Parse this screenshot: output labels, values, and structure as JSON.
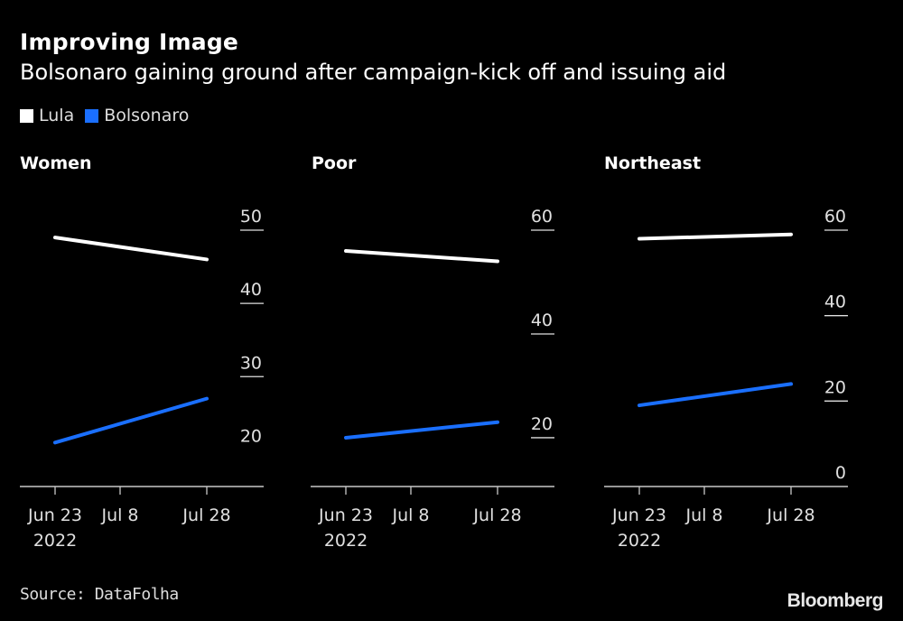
{
  "header": {
    "title": "Improving Image",
    "subtitle": "Bolsonaro gaining ground after campaign-kick off and issuing aid"
  },
  "legend": [
    {
      "label": "Lula",
      "color": "#ffffff"
    },
    {
      "label": "Bolsonaro",
      "color": "#1a6fff"
    }
  ],
  "footer": {
    "source": "Source: DataFolha",
    "brand": "Bloomberg"
  },
  "chart_data": [
    {
      "type": "line",
      "title": "Women",
      "x": [
        "2022-06-23",
        "2022-07-28"
      ],
      "xticks": [
        "Jun 23",
        "Jul 8",
        "Jul 28"
      ],
      "xtick_dates": [
        "2022-06-23",
        "2022-07-08",
        "2022-07-28"
      ],
      "xtick_sub": "2022",
      "yticks": [
        20,
        30,
        40,
        50
      ],
      "ylim": [
        15,
        50
      ],
      "grid": true,
      "legend": "top-left",
      "series": [
        {
          "name": "Lula",
          "values": [
            49,
            46
          ]
        },
        {
          "name": "Bolsonaro",
          "values": [
            21,
            27
          ]
        }
      ]
    },
    {
      "type": "line",
      "title": "Poor",
      "x": [
        "2022-06-23",
        "2022-07-28"
      ],
      "xticks": [
        "Jun 23",
        "Jul 8",
        "Jul 28"
      ],
      "xtick_dates": [
        "2022-06-23",
        "2022-07-08",
        "2022-07-28"
      ],
      "xtick_sub": "2022",
      "yticks": [
        20,
        40,
        60
      ],
      "ylim": [
        10.6,
        60
      ],
      "grid": true,
      "series": [
        {
          "name": "Lula",
          "values": [
            56,
            54
          ]
        },
        {
          "name": "Bolsonaro",
          "values": [
            20,
            23
          ]
        }
      ]
    },
    {
      "type": "line",
      "title": "Northeast",
      "x": [
        "2022-06-23",
        "2022-07-28"
      ],
      "xticks": [
        "Jun 23",
        "Jul 8",
        "Jul 28"
      ],
      "xtick_dates": [
        "2022-06-23",
        "2022-07-08",
        "2022-07-28"
      ],
      "xtick_sub": "2022",
      "yticks": [
        0,
        20,
        40,
        60
      ],
      "ylim": [
        0,
        60
      ],
      "grid": true,
      "series": [
        {
          "name": "Lula",
          "values": [
            58,
            59
          ]
        },
        {
          "name": "Bolsonaro",
          "values": [
            19,
            24
          ]
        }
      ]
    }
  ]
}
